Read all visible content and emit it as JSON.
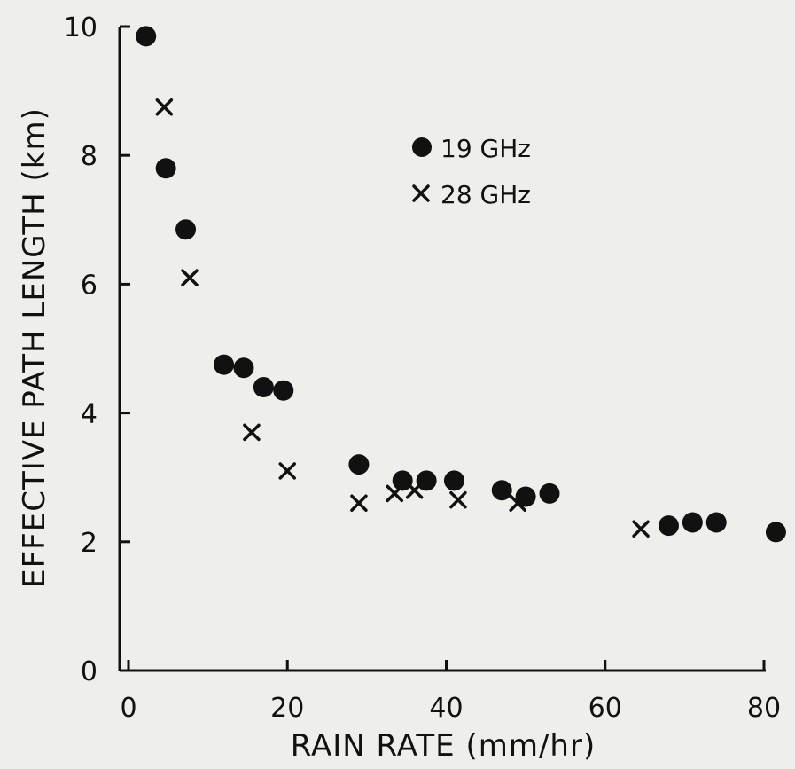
{
  "chart_data": {
    "type": "scatter",
    "title": "",
    "xlabel": "RAIN RATE (mm/hr)",
    "ylabel": "EFFECTIVE PATH LENGTH (km)",
    "xlim": [
      0,
      80
    ],
    "ylim": [
      0,
      10
    ],
    "xticks": [
      0,
      20,
      40,
      60,
      80
    ],
    "yticks": [
      0,
      2,
      4,
      6,
      8,
      10
    ],
    "grid": false,
    "legend_position": "top-right",
    "ink_color": "#111111",
    "series": [
      {
        "name": "19 GHz",
        "marker": "filled-circle",
        "points": [
          {
            "x": 2.2,
            "y": 9.85
          },
          {
            "x": 4.7,
            "y": 7.8
          },
          {
            "x": 7.2,
            "y": 6.85
          },
          {
            "x": 12.0,
            "y": 4.75
          },
          {
            "x": 14.5,
            "y": 4.7
          },
          {
            "x": 17.0,
            "y": 4.4
          },
          {
            "x": 19.5,
            "y": 4.35
          },
          {
            "x": 29.0,
            "y": 3.2
          },
          {
            "x": 34.5,
            "y": 2.95
          },
          {
            "x": 37.5,
            "y": 2.95
          },
          {
            "x": 41.0,
            "y": 2.95
          },
          {
            "x": 47.0,
            "y": 2.8
          },
          {
            "x": 50.0,
            "y": 2.7
          },
          {
            "x": 53.0,
            "y": 2.75
          },
          {
            "x": 68.0,
            "y": 2.25
          },
          {
            "x": 71.0,
            "y": 2.3
          },
          {
            "x": 74.0,
            "y": 2.3
          },
          {
            "x": 81.5,
            "y": 2.15
          }
        ]
      },
      {
        "name": "28 GHz",
        "marker": "x-cross",
        "points": [
          {
            "x": 4.5,
            "y": 8.75
          },
          {
            "x": 7.7,
            "y": 6.1
          },
          {
            "x": 15.5,
            "y": 3.7
          },
          {
            "x": 20.0,
            "y": 3.1
          },
          {
            "x": 29.0,
            "y": 2.6
          },
          {
            "x": 33.5,
            "y": 2.75
          },
          {
            "x": 36.0,
            "y": 2.8
          },
          {
            "x": 41.5,
            "y": 2.65
          },
          {
            "x": 49.0,
            "y": 2.6
          },
          {
            "x": 64.5,
            "y": 2.2
          }
        ]
      }
    ]
  }
}
